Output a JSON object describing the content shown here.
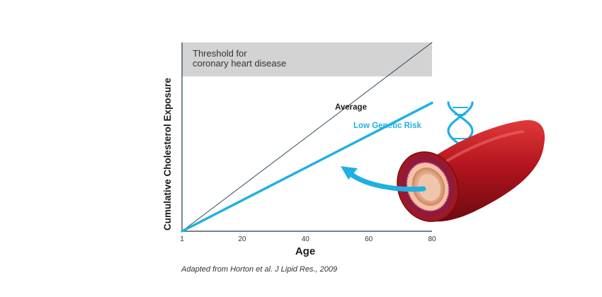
{
  "chart_data": {
    "type": "line",
    "xlabel": "Age",
    "ylabel": "Cumulative Cholesterol Exposure",
    "xlim": [
      1,
      80
    ],
    "ylim": [
      0,
      100
    ],
    "x_ticks": [
      "1",
      "20",
      "40",
      "60",
      "80"
    ],
    "x_tick_values": [
      1,
      20,
      40,
      60,
      80
    ],
    "threshold": {
      "label_line1": "Threshold for",
      "label_line2": "coronary heart disease",
      "from": 82,
      "to": 100,
      "color": "#d3d3d3"
    },
    "series": [
      {
        "name": "Average",
        "x": [
          1,
          80
        ],
        "y": [
          0,
          100
        ],
        "color": "#1d3c4f"
      },
      {
        "name": "Low Genetic Risk",
        "x": [
          1,
          80
        ],
        "y": [
          0,
          68
        ],
        "color": "#1fb0e2"
      }
    ],
    "grid": false,
    "caption": "Adapted from Horton et al. J Lipid Res., 2009"
  },
  "illustration": {
    "artery_icon": "artery-cross-section-icon",
    "dna_icon": "dna-helix-icon",
    "arrow_icon": "curved-arrow-icon",
    "artery_color": "#b3141e",
    "accent_color": "#1fb0e2"
  }
}
